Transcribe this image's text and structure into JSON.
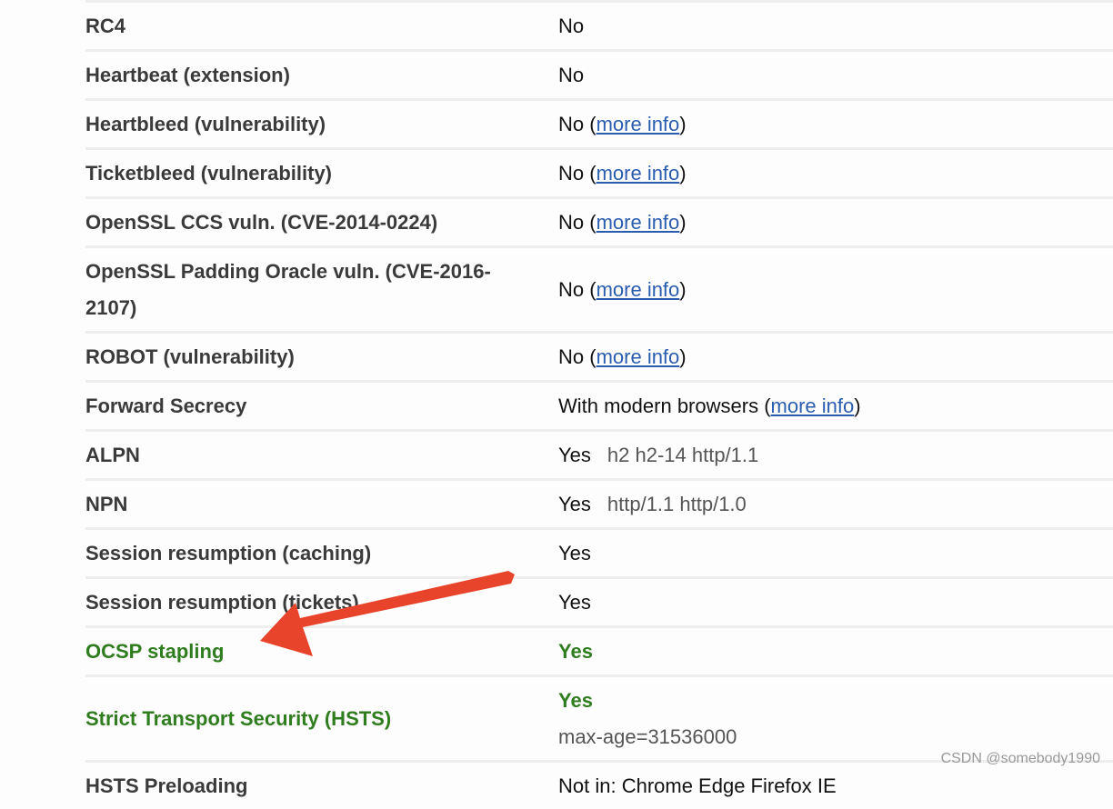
{
  "rows": [
    {
      "label": "RC4",
      "value": "No"
    },
    {
      "label": "Heartbeat (extension)",
      "value": "No"
    },
    {
      "label": "Heartbleed (vulnerability)",
      "value": "No",
      "link": "more info"
    },
    {
      "label": "Ticketbleed (vulnerability)",
      "value": "No",
      "link": "more info"
    },
    {
      "label": "OpenSSL CCS vuln. (CVE-2014-0224)",
      "value": "No",
      "link": "more info"
    },
    {
      "label": "OpenSSL Padding Oracle vuln. (CVE-2016-2107)",
      "value": "No",
      "link": "more info",
      "tall": true
    },
    {
      "label": "ROBOT (vulnerability)",
      "value": "No",
      "link": "more info"
    },
    {
      "label": "Forward Secrecy",
      "value": "With modern browsers",
      "link": "more info"
    },
    {
      "label": "ALPN",
      "value": "Yes",
      "extra": "h2 h2-14 http/1.1"
    },
    {
      "label": "NPN",
      "value": "Yes",
      "extra": "http/1.1 http/1.0"
    },
    {
      "label": "Session resumption (caching)",
      "value": "Yes"
    },
    {
      "label": "Session resumption (tickets)",
      "value": "Yes"
    },
    {
      "label": "OCSP stapling",
      "value": "Yes",
      "good": true
    },
    {
      "label": "Strict Transport Security (HSTS)",
      "value": "Yes",
      "sub": "max-age=31536000",
      "good": true,
      "tall": true
    },
    {
      "label": "HSTS Preloading",
      "value": "Not in: Chrome Edge Firefox IE"
    }
  ],
  "annotation": {
    "arrow_color": "#e8432b"
  },
  "watermark": "CSDN @somebody1990"
}
